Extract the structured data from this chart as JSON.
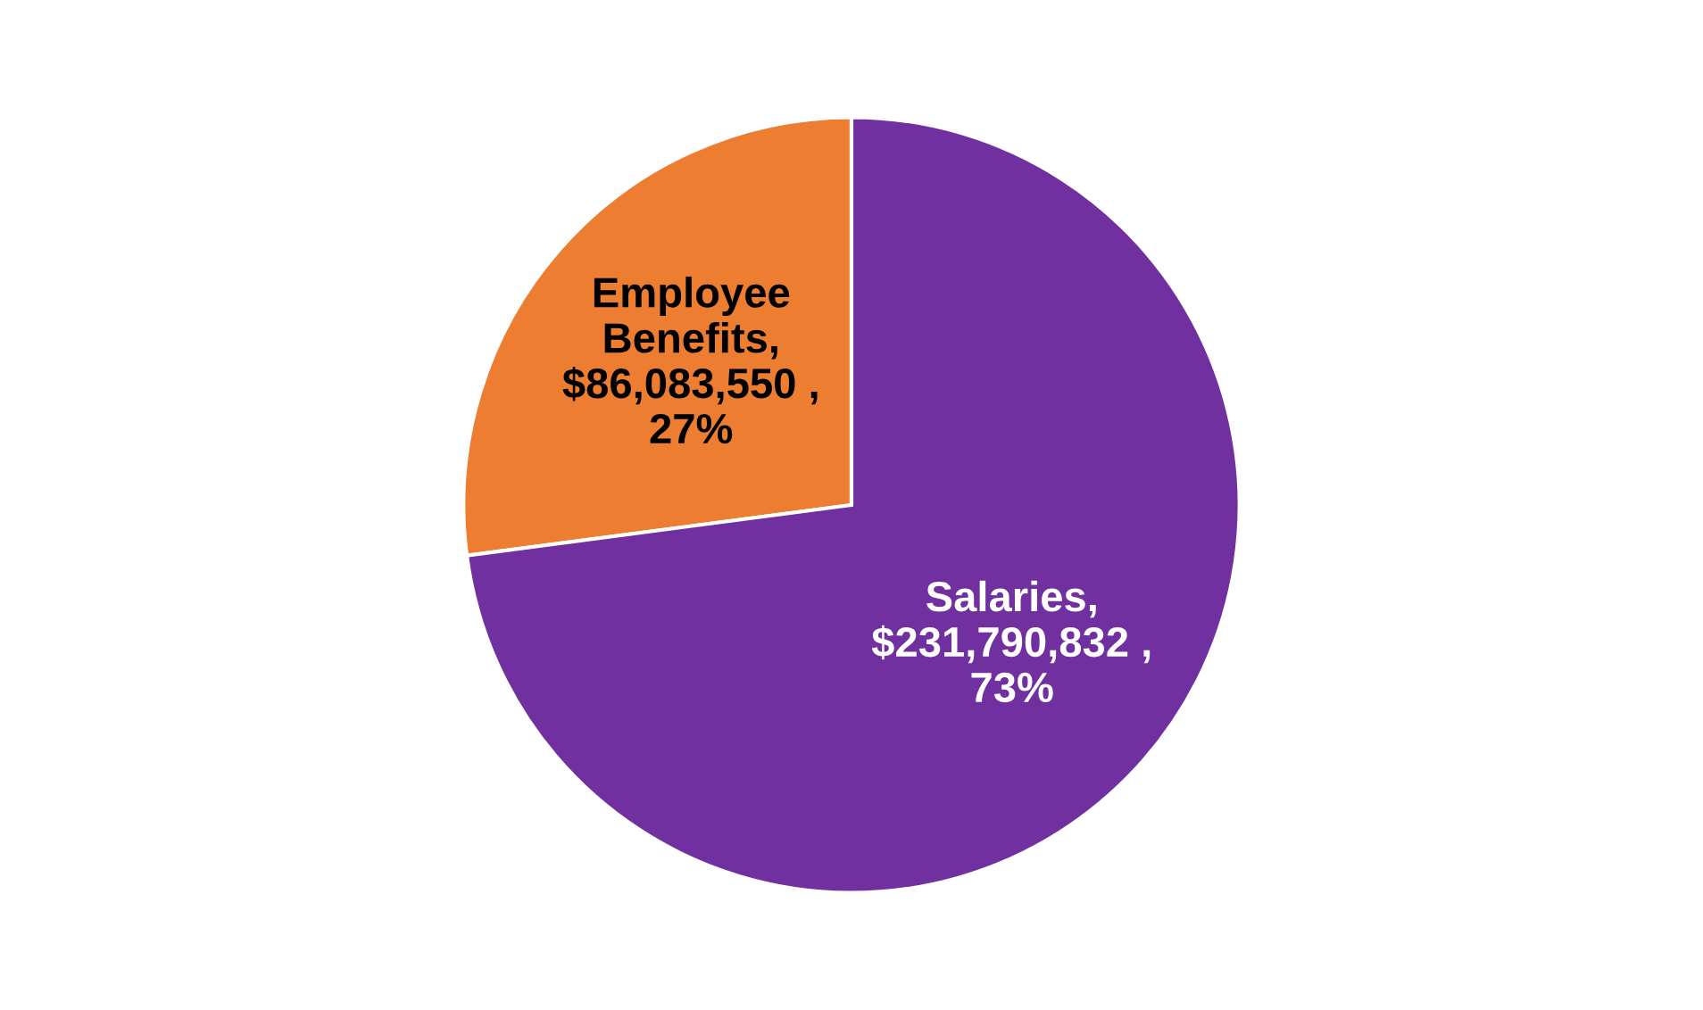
{
  "chart_data": {
    "type": "pie",
    "categories": [
      "Employee Benefits",
      "Salaries"
    ],
    "values": [
      86083550,
      231790832
    ],
    "colors": [
      "#ed7d31",
      "#7030a0"
    ],
    "value_labels": [
      ",\n$86,083,550 ,\n27%",
      ",\n$231,790,832 ,\n73%"
    ]
  }
}
